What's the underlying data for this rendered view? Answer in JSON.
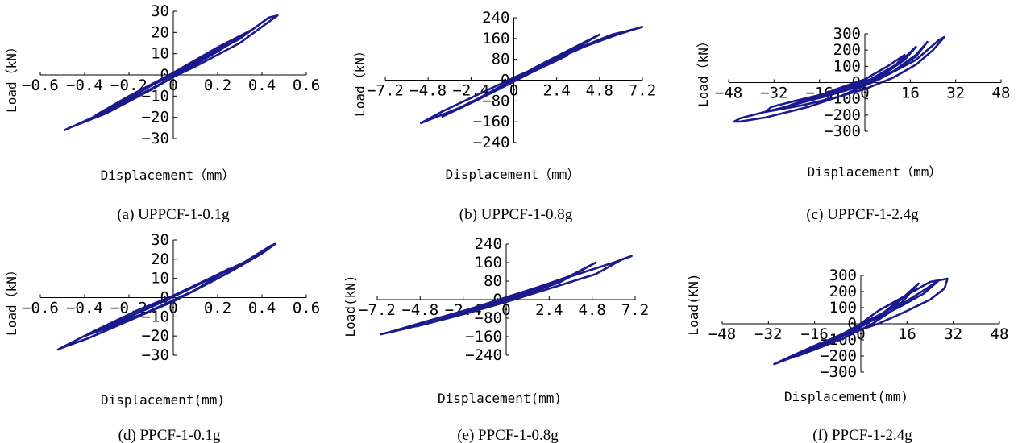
{
  "figure": {
    "line_color": "#1a1a8c"
  },
  "chart_data": [
    {
      "type": "line",
      "caption": "(a) UPPCF-1-0.1g",
      "xlabel": "Displacement（mm）",
      "ylabel": "Load（kN）",
      "xticks": [
        "-0.6",
        "-0.4",
        "-0.2",
        "0",
        "0.2",
        "0.4",
        "0.6"
      ],
      "yticks": [
        "30",
        "20",
        "10",
        "0",
        "-10",
        "-20",
        "-30"
      ],
      "xlim": [
        -0.6,
        0.6
      ],
      "ylim": [
        -30,
        30
      ],
      "series": [
        {
          "x": [
            -0.49,
            -0.3,
            -0.1,
            0.0,
            0.1,
            0.3,
            0.43,
            0.47,
            0.43,
            0.3,
            0.1,
            0.0,
            -0.1,
            -0.3,
            -0.47,
            -0.49
          ],
          "y": [
            -26,
            -17,
            -5,
            0,
            6,
            17,
            27,
            28,
            25,
            15,
            4,
            -1,
            -7,
            -18,
            -25,
            -26
          ]
        },
        {
          "x": [
            -0.35,
            -0.2,
            0.0,
            0.2,
            0.35,
            0.2,
            0.0,
            -0.2,
            -0.35
          ],
          "y": [
            -19,
            -10,
            1,
            13,
            21,
            11,
            -1,
            -12,
            -19
          ]
        },
        {
          "x": [
            -0.25,
            -0.1,
            0.1,
            0.25,
            0.1,
            -0.1,
            -0.25
          ],
          "y": [
            -14,
            -5,
            7,
            15,
            5,
            -7,
            -14
          ]
        }
      ]
    },
    {
      "type": "line",
      "caption": "(b) UPPCF-1-0.8g",
      "xlabel": "Displacement（mm）",
      "ylabel": "Load（kN）",
      "xticks": [
        "-7.2",
        "-4.8",
        "-2.4",
        "0",
        "2.4",
        "4.8",
        "7.2"
      ],
      "yticks": [
        "240",
        "160",
        "80",
        "0",
        "-80",
        "-160",
        "-240"
      ],
      "xlim": [
        -7.2,
        7.2
      ],
      "ylim": [
        -240,
        240
      ],
      "series": [
        {
          "x": [
            -5.2,
            -3.0,
            -1.0,
            0.0,
            1.5,
            3.5,
            5.5,
            7.0,
            7.2,
            5.8,
            4.0,
            2.0,
            0.0,
            -2.0,
            -4.0,
            -5.2
          ],
          "y": [
            -165,
            -105,
            -40,
            -5,
            55,
            120,
            175,
            200,
            205,
            175,
            130,
            70,
            10,
            -55,
            -120,
            -165
          ]
        },
        {
          "x": [
            -4.0,
            -2.0,
            0.0,
            2.0,
            4.8,
            3.5,
            1.5,
            -0.5,
            -2.5,
            -4.0
          ],
          "y": [
            -140,
            -75,
            -5,
            65,
            175,
            130,
            60,
            -15,
            -90,
            -140
          ]
        },
        {
          "x": [
            -3.0,
            -1.0,
            1.0,
            3.0,
            1.5,
            -0.5,
            -3.0
          ],
          "y": [
            -105,
            -40,
            30,
            95,
            50,
            -20,
            -105
          ]
        }
      ]
    },
    {
      "type": "line",
      "caption": "(c) UPPCF-1-2.4g",
      "xlabel": "Displacement（mm）",
      "ylabel": "Load（kN）",
      "xticks": [
        "-48",
        "-32",
        "-16",
        "0",
        "16",
        "32",
        "48"
      ],
      "yticks": [
        "300",
        "200",
        "100",
        "0",
        "-100",
        "-200",
        "-300"
      ],
      "xlim": [
        -48,
        48
      ],
      "ylim": [
        -300,
        300
      ],
      "series": [
        {
          "x": [
            -44,
            -35,
            -20,
            -8,
            5,
            18,
            26,
            28,
            24,
            18,
            10,
            0,
            -10,
            -22,
            -35,
            -44,
            -46,
            -44
          ],
          "y": [
            -240,
            -215,
            -150,
            -80,
            20,
            140,
            260,
            280,
            200,
            110,
            30,
            -40,
            -90,
            -140,
            -180,
            -220,
            -240,
            -240
          ]
        },
        {
          "x": [
            -35,
            -28,
            -15,
            -3,
            10,
            18,
            22,
            18,
            10,
            0,
            -12,
            -25,
            -33,
            -35
          ],
          "y": [
            -180,
            -150,
            -90,
            -30,
            70,
            160,
            250,
            170,
            70,
            0,
            -60,
            -115,
            -150,
            -180
          ]
        },
        {
          "x": [
            -28,
            -20,
            -8,
            4,
            14,
            18,
            12,
            2,
            -8,
            -20,
            -28
          ],
          "y": [
            -150,
            -110,
            -50,
            20,
            140,
            220,
            120,
            20,
            -40,
            -100,
            -150
          ]
        },
        {
          "x": [
            -20,
            -10,
            0,
            10,
            14,
            8,
            0,
            -10,
            -20
          ],
          "y": [
            -110,
            -55,
            0,
            90,
            170,
            100,
            20,
            -40,
            -110
          ]
        }
      ]
    },
    {
      "type": "line",
      "caption": "(d) PPCF-1-0.1g",
      "xlabel": "Displacement(mm)",
      "ylabel": "Load（kN）",
      "xticks": [
        "-0.6",
        "-0.4",
        "-0.2",
        "0",
        "0.2",
        "0.4",
        "0.6"
      ],
      "yticks": [
        "30",
        "20",
        "10",
        "0",
        "-10",
        "-20",
        "-30"
      ],
      "xlim": [
        -0.6,
        0.6
      ],
      "ylim": [
        -30,
        30
      ],
      "series": [
        {
          "x": [
            -0.52,
            -0.35,
            -0.15,
            0.0,
            0.15,
            0.3,
            0.44,
            0.46,
            0.4,
            0.25,
            0.1,
            -0.05,
            -0.2,
            -0.38,
            -0.5,
            -0.52
          ],
          "y": [
            -27,
            -17,
            -6,
            1,
            9,
            17,
            27,
            28,
            23,
            13,
            4,
            -4,
            -12,
            -21,
            -26,
            -27
          ]
        },
        {
          "x": [
            -0.4,
            -0.2,
            0.0,
            0.2,
            0.35,
            0.2,
            0.0,
            -0.2,
            -0.4
          ],
          "y": [
            -20,
            -10,
            1,
            12,
            20,
            10,
            -2,
            -12,
            -20
          ]
        },
        {
          "x": [
            -0.3,
            -0.1,
            0.1,
            0.25,
            0.1,
            -0.1,
            -0.3
          ],
          "y": [
            -15,
            -5,
            6,
            15,
            4,
            -7,
            -15
          ]
        }
      ]
    },
    {
      "type": "line",
      "caption": "(e) PPCF-1-0.8g",
      "xlabel": "Displacement(mm)",
      "ylabel": "Load(kN)",
      "xticks": [
        "-7.2",
        "-4.8",
        "-2.4",
        "0",
        "2.4",
        "4.8",
        "7.2"
      ],
      "yticks": [
        "240",
        "160",
        "80",
        "0",
        "-80",
        "-160",
        "-240"
      ],
      "xlim": [
        -7.2,
        7.2
      ],
      "ylim": [
        -240,
        240
      ],
      "series": [
        {
          "x": [
            -7.0,
            -4.5,
            -2.0,
            0.0,
            2.5,
            5.0,
            6.5,
            7.0,
            6.0,
            4.0,
            2.0,
            0.0,
            -2.0,
            -4.5,
            -6.5,
            -7.0
          ],
          "y": [
            -150,
            -105,
            -55,
            -10,
            50,
            110,
            175,
            188,
            160,
            110,
            60,
            10,
            -40,
            -95,
            -140,
            -150
          ]
        },
        {
          "x": [
            -5.0,
            -3.0,
            -1.0,
            1.0,
            3.0,
            5.0,
            3.5,
            1.5,
            -0.5,
            -2.5,
            -5.0
          ],
          "y": [
            -115,
            -75,
            -30,
            20,
            75,
            160,
            100,
            45,
            -10,
            -60,
            -115
          ]
        },
        {
          "x": [
            -3.5,
            -1.5,
            0.5,
            2.5,
            3.5,
            2.0,
            0.0,
            -2.0,
            -3.5
          ],
          "y": [
            -85,
            -40,
            10,
            65,
            100,
            60,
            5,
            -50,
            -85
          ]
        }
      ]
    },
    {
      "type": "line",
      "caption": "(f) PPCF-1-2.4g",
      "xlabel": "Displacement(mm)",
      "ylabel": "Load(KN)",
      "xticks": [
        "-48",
        "-32",
        "-16",
        "0",
        "16",
        "32",
        "48"
      ],
      "yticks": [
        "300",
        "200",
        "100",
        "0",
        "-100",
        "-200",
        "-300"
      ],
      "xlim": [
        -48,
        48
      ],
      "ylim": [
        -300,
        300
      ],
      "series": [
        {
          "x": [
            -30,
            -24,
            -14,
            -4,
            6,
            16,
            24,
            30,
            29,
            24,
            16,
            6,
            -4,
            -14,
            -24,
            -30
          ],
          "y": [
            -250,
            -210,
            -140,
            -50,
            80,
            180,
            260,
            280,
            220,
            150,
            80,
            0,
            -60,
            -120,
            -200,
            -250
          ]
        },
        {
          "x": [
            -22,
            -16,
            -6,
            4,
            14,
            22,
            27,
            22,
            14,
            4,
            -6,
            -16,
            -22
          ],
          "y": [
            -200,
            -160,
            -90,
            0,
            120,
            210,
            270,
            190,
            110,
            20,
            -60,
            -140,
            -200
          ]
        },
        {
          "x": [
            -16,
            -8,
            2,
            12,
            20,
            14,
            4,
            -6,
            -16
          ],
          "y": [
            -150,
            -90,
            0,
            120,
            250,
            130,
            30,
            -60,
            -150
          ]
        },
        {
          "x": [
            -10,
            -2,
            8,
            14,
            8,
            -2,
            -10
          ],
          "y": [
            -100,
            -30,
            70,
            160,
            70,
            -20,
            -100
          ]
        }
      ]
    }
  ]
}
